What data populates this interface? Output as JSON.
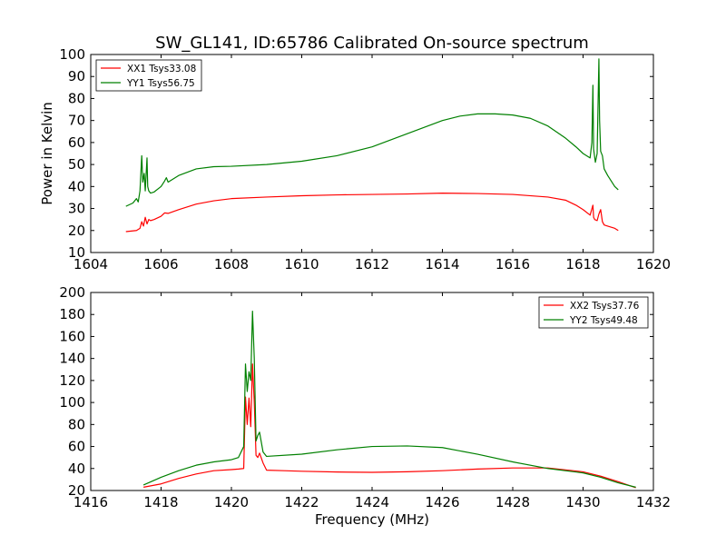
{
  "figure_title": "SW_GL141, ID:65786 Calibrated On-source spectrum",
  "colors": {
    "xx": "#ff0000",
    "yy": "#008000",
    "axes": "#000000",
    "background": "#ffffff"
  },
  "chart_data": [
    {
      "type": "line",
      "title": "SW_GL141, ID:65786 Calibrated On-source spectrum",
      "xlabel": "",
      "ylabel": "Power in Kelvin",
      "xlim": [
        1604,
        1620
      ],
      "ylim": [
        10,
        100
      ],
      "xticks": [
        1604,
        1606,
        1608,
        1610,
        1612,
        1614,
        1616,
        1618,
        1620
      ],
      "yticks": [
        10,
        20,
        30,
        40,
        50,
        60,
        70,
        80,
        90,
        100
      ],
      "grid": false,
      "legend_position": "top-left",
      "series": [
        {
          "name": "XX1 Tsys33.08",
          "color": "#ff0000",
          "x": [
            1605.0,
            1605.3,
            1605.4,
            1605.45,
            1605.5,
            1605.55,
            1605.6,
            1605.65,
            1605.7,
            1605.8,
            1606.0,
            1606.1,
            1606.2,
            1606.5,
            1607.0,
            1607.5,
            1608.0,
            1609.0,
            1610.0,
            1611.0,
            1612.0,
            1613.0,
            1614.0,
            1615.0,
            1616.0,
            1617.0,
            1617.5,
            1617.8,
            1618.0,
            1618.2,
            1618.28,
            1618.3,
            1618.33,
            1618.4,
            1618.45,
            1618.5,
            1618.55,
            1618.6,
            1618.7,
            1618.9,
            1619.0
          ],
          "y": [
            19.5,
            20.0,
            21.0,
            24.0,
            22.0,
            26.0,
            23.0,
            25.0,
            24.5,
            25.0,
            26.5,
            28.0,
            27.8,
            29.5,
            32.0,
            33.5,
            34.5,
            35.2,
            35.8,
            36.2,
            36.4,
            36.6,
            37.0,
            36.8,
            36.4,
            35.2,
            33.8,
            31.5,
            29.5,
            27.0,
            31.5,
            26.0,
            25.0,
            24.5,
            27.5,
            29.5,
            24.0,
            22.5,
            22.0,
            21.0,
            20.0
          ]
        },
        {
          "name": "YY1 Tsys56.75",
          "color": "#008000",
          "x": [
            1605.0,
            1605.2,
            1605.3,
            1605.35,
            1605.4,
            1605.45,
            1605.48,
            1605.52,
            1605.55,
            1605.6,
            1605.62,
            1605.65,
            1605.7,
            1605.8,
            1606.0,
            1606.1,
            1606.15,
            1606.2,
            1606.5,
            1607.0,
            1607.5,
            1608.0,
            1609.0,
            1610.0,
            1611.0,
            1612.0,
            1613.0,
            1614.0,
            1614.5,
            1615.0,
            1615.5,
            1616.0,
            1616.5,
            1617.0,
            1617.5,
            1617.8,
            1618.0,
            1618.2,
            1618.25,
            1618.28,
            1618.3,
            1618.35,
            1618.4,
            1618.45,
            1618.47,
            1618.5,
            1618.55,
            1618.6,
            1618.7,
            1618.9,
            1619.0
          ],
          "y": [
            31.0,
            32.5,
            34.5,
            33.0,
            38.0,
            54.0,
            42.0,
            46.0,
            38.0,
            53.0,
            40.0,
            38.0,
            37.0,
            37.5,
            40.0,
            42.5,
            44.0,
            42.0,
            45.0,
            48.0,
            49.0,
            49.2,
            50.0,
            51.5,
            54.0,
            58.0,
            64.0,
            70.0,
            72.0,
            73.0,
            73.0,
            72.5,
            71.0,
            67.5,
            62.0,
            58.0,
            55.0,
            53.0,
            60.0,
            86.0,
            57.0,
            51.0,
            55.0,
            98.0,
            70.0,
            56.0,
            54.0,
            48.0,
            45.0,
            40.0,
            38.5
          ]
        }
      ]
    },
    {
      "type": "line",
      "title": "",
      "xlabel": "Frequency (MHz)",
      "ylabel": "",
      "xlim": [
        1416,
        1432
      ],
      "ylim": [
        20,
        200
      ],
      "xticks": [
        1416,
        1418,
        1420,
        1422,
        1424,
        1426,
        1428,
        1430,
        1432
      ],
      "yticks": [
        20,
        40,
        60,
        80,
        100,
        120,
        140,
        160,
        180,
        200
      ],
      "grid": false,
      "legend_position": "top-right",
      "series": [
        {
          "name": "XX2 Tsys37.76",
          "color": "#ff0000",
          "x": [
            1417.5,
            1418.0,
            1418.5,
            1419.0,
            1419.5,
            1420.0,
            1420.2,
            1420.35,
            1420.4,
            1420.45,
            1420.5,
            1420.55,
            1420.6,
            1420.65,
            1420.7,
            1420.75,
            1420.8,
            1420.9,
            1421.0,
            1421.5,
            1422.0,
            1423.0,
            1424.0,
            1425.0,
            1426.0,
            1427.0,
            1428.0,
            1429.0,
            1430.0,
            1430.5,
            1431.0,
            1431.5
          ],
          "y": [
            23.0,
            26.0,
            31.0,
            35.0,
            38.0,
            39.0,
            39.5,
            40.0,
            105.0,
            80.0,
            104.0,
            78.0,
            135.0,
            100.0,
            52.0,
            50.0,
            54.0,
            45.0,
            38.5,
            38.0,
            37.5,
            36.8,
            36.5,
            37.0,
            38.0,
            39.5,
            40.5,
            40.5,
            37.0,
            33.0,
            28.0,
            22.5
          ]
        },
        {
          "name": "YY2 Tsys49.48",
          "color": "#008000",
          "x": [
            1417.5,
            1418.0,
            1418.5,
            1419.0,
            1419.5,
            1420.0,
            1420.2,
            1420.35,
            1420.4,
            1420.45,
            1420.5,
            1420.55,
            1420.6,
            1420.65,
            1420.7,
            1420.75,
            1420.8,
            1420.9,
            1421.0,
            1422.0,
            1423.0,
            1424.0,
            1425.0,
            1426.0,
            1427.0,
            1428.0,
            1429.0,
            1430.0,
            1430.5,
            1431.0,
            1431.5
          ],
          "y": [
            25.0,
            32.0,
            38.0,
            43.0,
            46.0,
            48.0,
            50.0,
            60.0,
            135.0,
            110.0,
            128.0,
            120.0,
            183.0,
            140.0,
            65.0,
            70.0,
            73.0,
            55.0,
            51.0,
            53.0,
            57.0,
            60.0,
            60.5,
            59.0,
            53.0,
            46.0,
            40.0,
            36.0,
            32.0,
            27.0,
            23.0
          ]
        }
      ]
    }
  ]
}
